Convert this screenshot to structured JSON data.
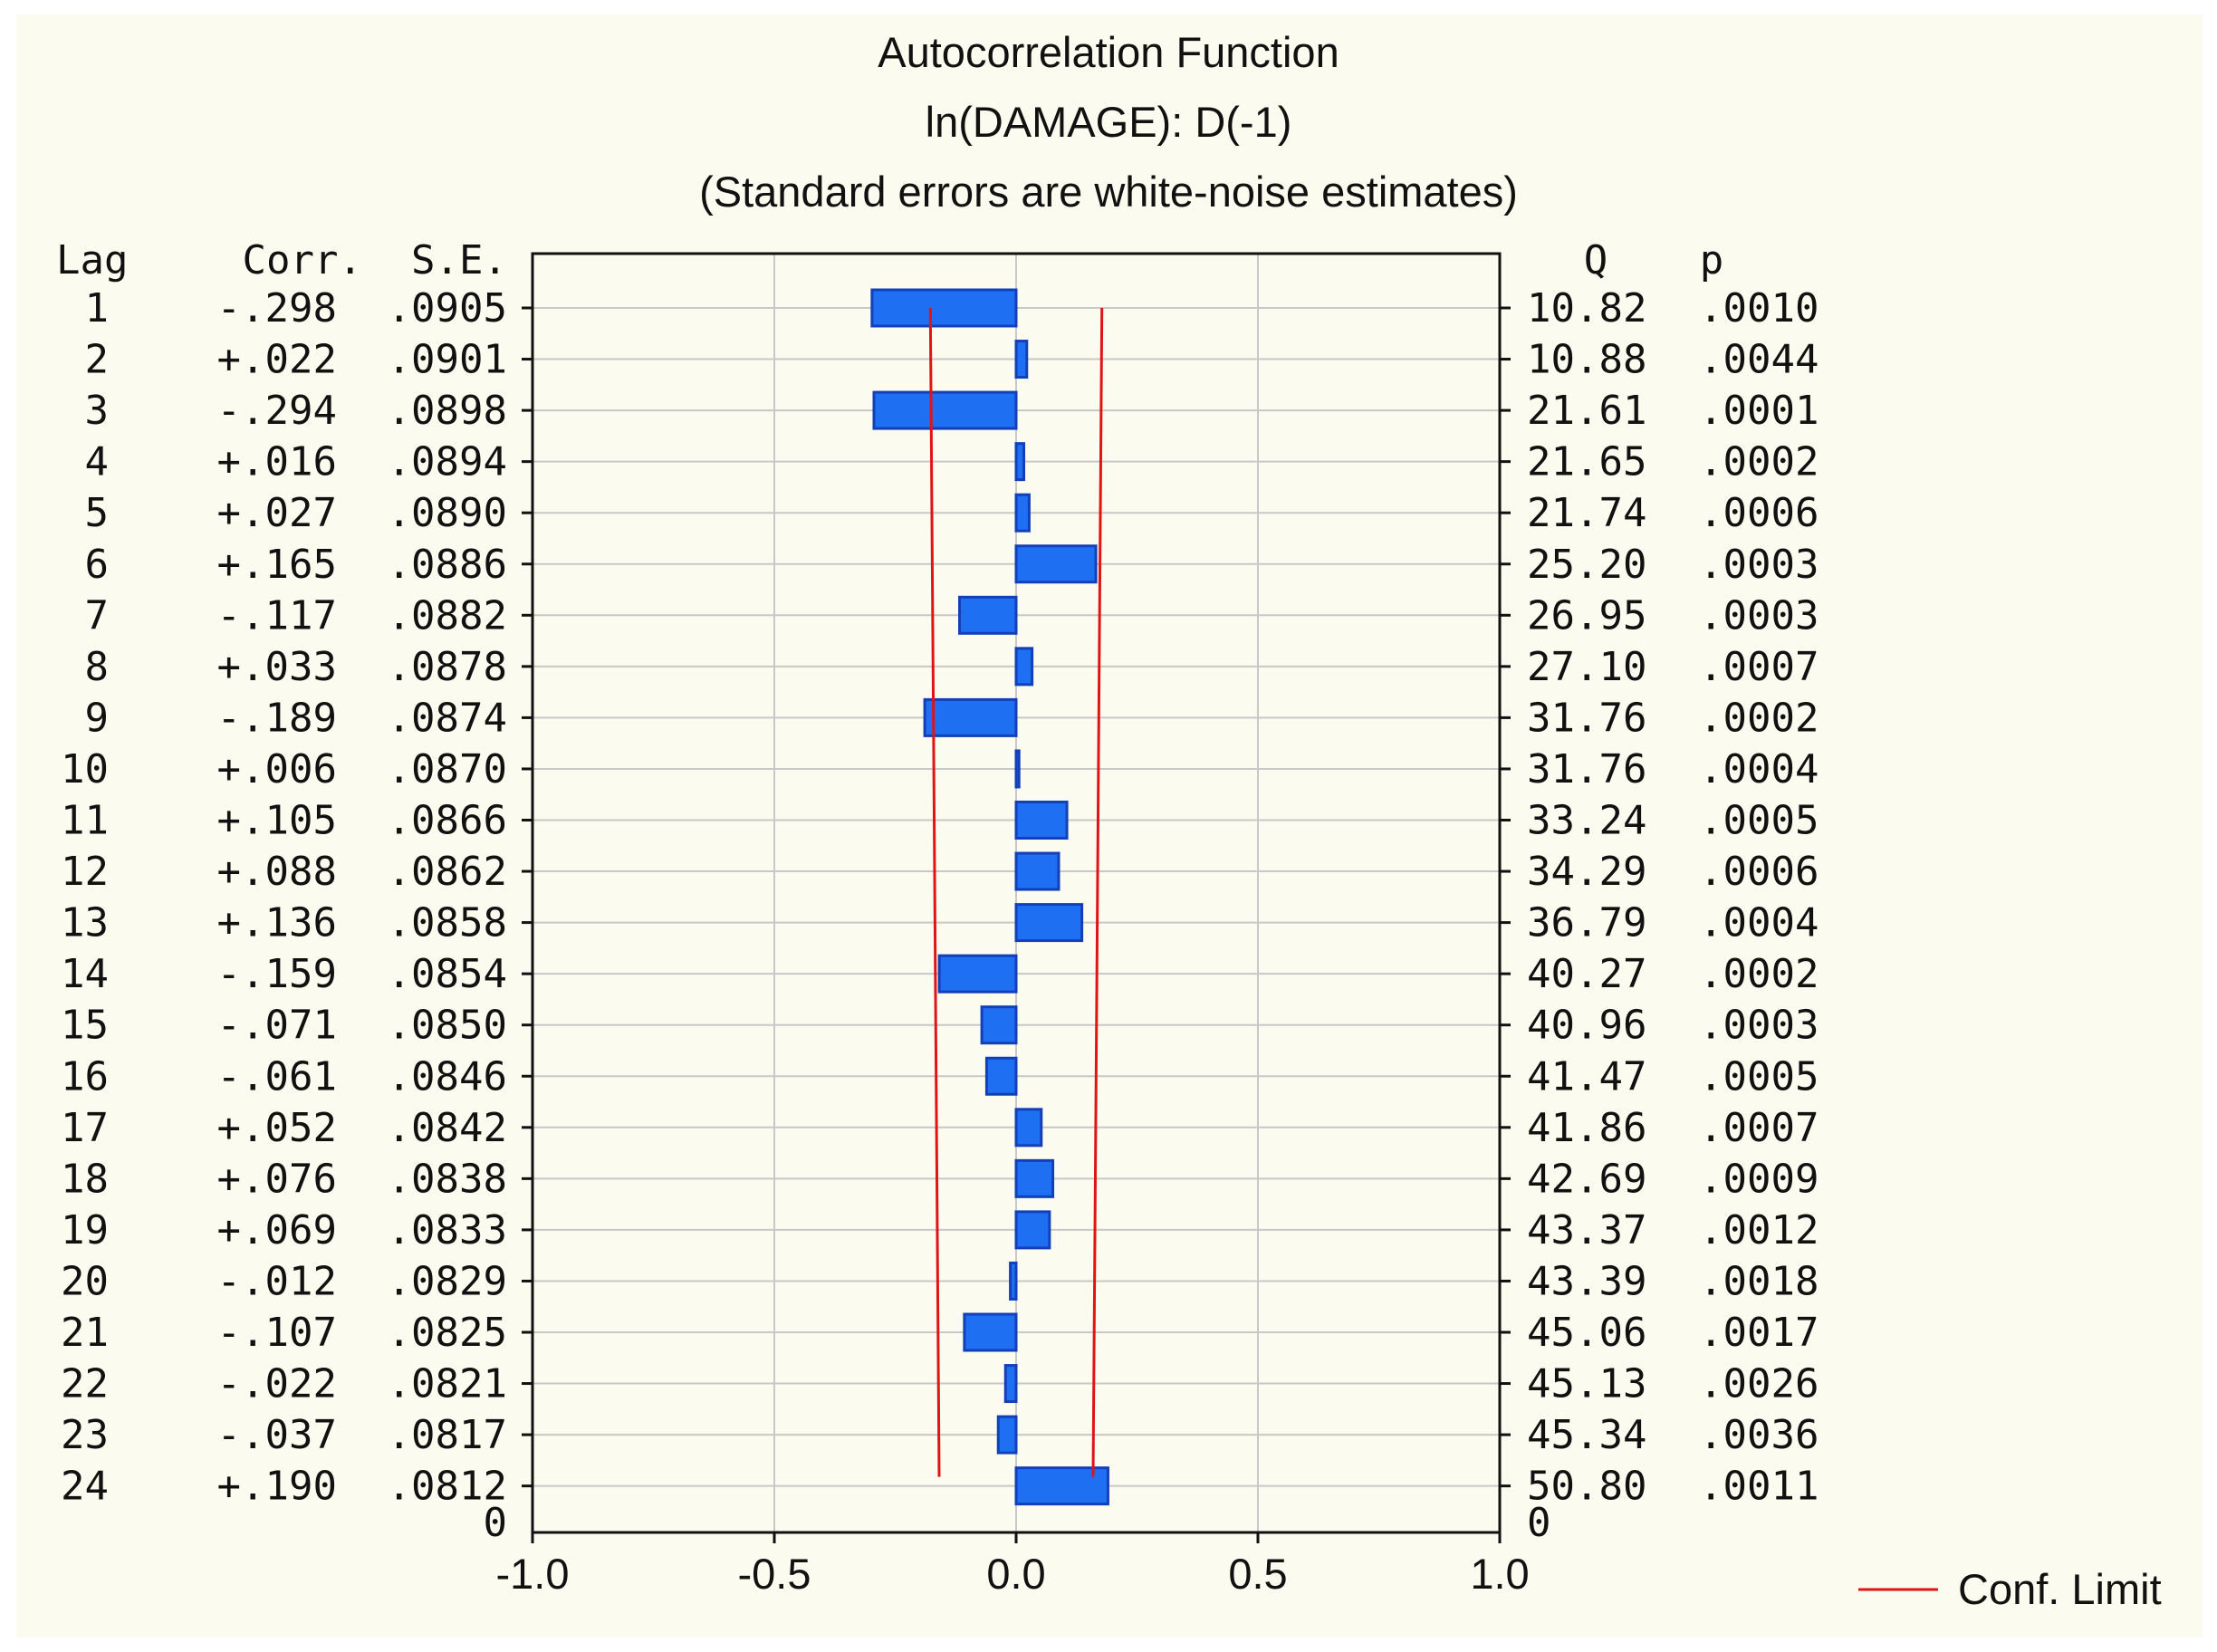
{
  "chart_data": {
    "type": "bar",
    "orientation": "horizontal",
    "title": "Autocorrelation Function",
    "subtitle": "ln(DAMAGE): D(-1)",
    "note": "(Standard errors are white-noise estimates)",
    "columns": {
      "lag": "Lag",
      "corr": "Corr.",
      "se": "S.E.",
      "q": "Q",
      "p": "p"
    },
    "zero_label": "0",
    "xlim": [
      -1.0,
      1.0
    ],
    "x_ticks": [
      "-1.0",
      "-0.5",
      "0.0",
      "0.5",
      "1.0"
    ],
    "x_tick_values": [
      -1.0,
      -0.5,
      0.0,
      0.5,
      1.0
    ],
    "grid": true,
    "legend": {
      "position": "bottom-right",
      "label": "Conf. Limit"
    },
    "colors": {
      "bar": "#1e6ff2",
      "bar_border": "#1340b8",
      "conf_limit": "#e01414",
      "grid": "#c8c8c8",
      "background": "#fbfbf0"
    },
    "lags": [
      {
        "lag": "1",
        "corr": -0.298,
        "corr_label": "-.298",
        "se": 0.0905,
        "se_label": ".0905",
        "q": "10.82",
        "p": ".0010"
      },
      {
        "lag": "2",
        "corr": 0.022,
        "corr_label": "+.022",
        "se": 0.0901,
        "se_label": ".0901",
        "q": "10.88",
        "p": ".0044"
      },
      {
        "lag": "3",
        "corr": -0.294,
        "corr_label": "-.294",
        "se": 0.0898,
        "se_label": ".0898",
        "q": "21.61",
        "p": ".0001"
      },
      {
        "lag": "4",
        "corr": 0.016,
        "corr_label": "+.016",
        "se": 0.0894,
        "se_label": ".0894",
        "q": "21.65",
        "p": ".0002"
      },
      {
        "lag": "5",
        "corr": 0.027,
        "corr_label": "+.027",
        "se": 0.089,
        "se_label": ".0890",
        "q": "21.74",
        "p": ".0006"
      },
      {
        "lag": "6",
        "corr": 0.165,
        "corr_label": "+.165",
        "se": 0.0886,
        "se_label": ".0886",
        "q": "25.20",
        "p": ".0003"
      },
      {
        "lag": "7",
        "corr": -0.117,
        "corr_label": "-.117",
        "se": 0.0882,
        "se_label": ".0882",
        "q": "26.95",
        "p": ".0003"
      },
      {
        "lag": "8",
        "corr": 0.033,
        "corr_label": "+.033",
        "se": 0.0878,
        "se_label": ".0878",
        "q": "27.10",
        "p": ".0007"
      },
      {
        "lag": "9",
        "corr": -0.189,
        "corr_label": "-.189",
        "se": 0.0874,
        "se_label": ".0874",
        "q": "31.76",
        "p": ".0002"
      },
      {
        "lag": "10",
        "corr": 0.006,
        "corr_label": "+.006",
        "se": 0.087,
        "se_label": ".0870",
        "q": "31.76",
        "p": ".0004"
      },
      {
        "lag": "11",
        "corr": 0.105,
        "corr_label": "+.105",
        "se": 0.0866,
        "se_label": ".0866",
        "q": "33.24",
        "p": ".0005"
      },
      {
        "lag": "12",
        "corr": 0.088,
        "corr_label": "+.088",
        "se": 0.0862,
        "se_label": ".0862",
        "q": "34.29",
        "p": ".0006"
      },
      {
        "lag": "13",
        "corr": 0.136,
        "corr_label": "+.136",
        "se": 0.0858,
        "se_label": ".0858",
        "q": "36.79",
        "p": ".0004"
      },
      {
        "lag": "14",
        "corr": -0.159,
        "corr_label": "-.159",
        "se": 0.0854,
        "se_label": ".0854",
        "q": "40.27",
        "p": ".0002"
      },
      {
        "lag": "15",
        "corr": -0.071,
        "corr_label": "-.071",
        "se": 0.085,
        "se_label": ".0850",
        "q": "40.96",
        "p": ".0003"
      },
      {
        "lag": "16",
        "corr": -0.061,
        "corr_label": "-.061",
        "se": 0.0846,
        "se_label": ".0846",
        "q": "41.47",
        "p": ".0005"
      },
      {
        "lag": "17",
        "corr": 0.052,
        "corr_label": "+.052",
        "se": 0.0842,
        "se_label": ".0842",
        "q": "41.86",
        "p": ".0007"
      },
      {
        "lag": "18",
        "corr": 0.076,
        "corr_label": "+.076",
        "se": 0.0838,
        "se_label": ".0838",
        "q": "42.69",
        "p": ".0009"
      },
      {
        "lag": "19",
        "corr": 0.069,
        "corr_label": "+.069",
        "se": 0.0833,
        "se_label": ".0833",
        "q": "43.37",
        "p": ".0012"
      },
      {
        "lag": "20",
        "corr": -0.012,
        "corr_label": "-.012",
        "se": 0.0829,
        "se_label": ".0829",
        "q": "43.39",
        "p": ".0018"
      },
      {
        "lag": "21",
        "corr": -0.107,
        "corr_label": "-.107",
        "se": 0.0825,
        "se_label": ".0825",
        "q": "45.06",
        "p": ".0017"
      },
      {
        "lag": "22",
        "corr": -0.022,
        "corr_label": "-.022",
        "se": 0.0821,
        "se_label": ".0821",
        "q": "45.13",
        "p": ".0026"
      },
      {
        "lag": "23",
        "corr": -0.037,
        "corr_label": "-.037",
        "se": 0.0817,
        "se_label": ".0817",
        "q": "45.34",
        "p": ".0036"
      },
      {
        "lag": "24",
        "corr": 0.19,
        "corr_label": "+.190",
        "se": 0.0812,
        "se_label": ".0812",
        "q": "50.80",
        "p": ".0011"
      }
    ]
  }
}
